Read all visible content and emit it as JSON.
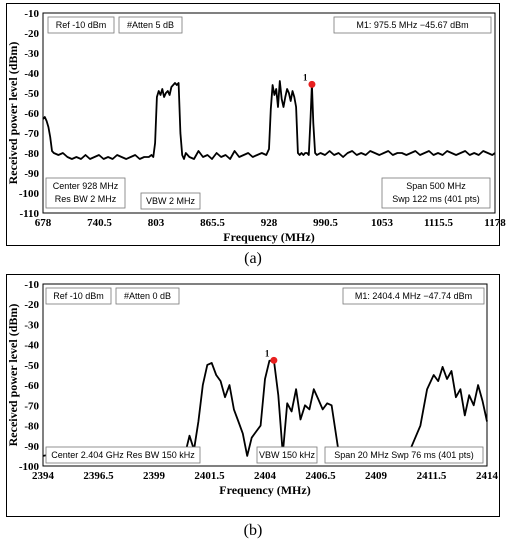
{
  "chart_data": [
    {
      "type": "line",
      "caption": "(a)",
      "xlabel": "Frequency (MHz)",
      "ylabel": "Received power level (dBm)",
      "xlim": [
        678,
        1178
      ],
      "ylim": [
        -110,
        -10
      ],
      "x_ticks": [
        "678",
        "740.5",
        "803",
        "865.5",
        "928",
        "990.5",
        "1053",
        "1115.5",
        "1178"
      ],
      "y_ticks": [
        "-10",
        "-20",
        "-30",
        "-40",
        "-50",
        "-60",
        "-70",
        "-80",
        "-90",
        "-100",
        "-110"
      ],
      "grid": false,
      "annotations": {
        "ref": "Ref -10 dBm",
        "atten": "#Atten 5 dB",
        "marker_readout": "M1: 975.5 MHz −45.67 dBm",
        "center_line1": "Center 928 MHz",
        "center_line2": "Res BW 2 MHz",
        "vbw": "VBW 2 MHz",
        "span_line1": "Span 500 MHz",
        "span_line2": "Swp 122 ms (401 pts)"
      },
      "marker": {
        "label": "1",
        "x": 975.5,
        "y": -45.67
      },
      "trace": {
        "x": [
          678,
          680,
          682,
          684,
          686,
          688,
          690,
          695,
          700,
          705,
          710,
          715,
          720,
          725,
          730,
          735,
          740,
          745,
          750,
          755,
          760,
          765,
          770,
          775,
          780,
          785,
          790,
          795,
          798,
          800,
          802,
          804,
          806,
          808,
          810,
          812,
          814,
          816,
          818,
          820,
          822,
          824,
          826,
          828,
          830,
          832,
          834,
          836,
          840,
          845,
          850,
          855,
          860,
          865,
          870,
          875,
          880,
          885,
          890,
          895,
          900,
          905,
          910,
          915,
          920,
          925,
          928,
          930,
          932,
          934,
          936,
          938,
          940,
          942,
          944,
          946,
          948,
          950,
          952,
          954,
          956,
          958,
          960,
          962,
          964,
          966,
          968,
          970,
          972,
          974,
          975.5,
          977,
          979,
          981,
          985,
          990,
          995,
          1000,
          1005,
          1010,
          1015,
          1020,
          1025,
          1030,
          1035,
          1040,
          1045,
          1050,
          1055,
          1060,
          1065,
          1070,
          1075,
          1080,
          1085,
          1090,
          1095,
          1100,
          1105,
          1110,
          1115,
          1120,
          1125,
          1130,
          1135,
          1140,
          1145,
          1150,
          1155,
          1160,
          1165,
          1170,
          1175,
          1178
        ],
        "y": [
          -63,
          -62,
          -64,
          -67,
          -72,
          -79,
          -80,
          -81,
          -80,
          -82,
          -83,
          -82,
          -83,
          -81,
          -83,
          -82,
          -81,
          -83,
          -82,
          -83,
          -81,
          -82,
          -83,
          -82,
          -81,
          -83,
          -82,
          -82,
          -81,
          -82,
          -75,
          -52,
          -49,
          -51,
          -48,
          -52,
          -50,
          -49,
          -51,
          -47,
          -46,
          -45,
          -46,
          -45,
          -70,
          -81,
          -83,
          -80,
          -82,
          -83,
          -79,
          -82,
          -81,
          -83,
          -80,
          -82,
          -81,
          -83,
          -79,
          -82,
          -81,
          -80,
          -82,
          -81,
          -80,
          -81,
          -78,
          -58,
          -46,
          -51,
          -48,
          -57,
          -44,
          -53,
          -57,
          -52,
          -48,
          -50,
          -54,
          -49,
          -52,
          -57,
          -80,
          -81,
          -80,
          -81,
          -80,
          -80,
          -81,
          -62,
          -45.67,
          -65,
          -80,
          -81,
          -80,
          -81,
          -79,
          -81,
          -80,
          -82,
          -80,
          -79,
          -81,
          -80,
          -81,
          -79,
          -80,
          -81,
          -80,
          -79,
          -81,
          -80,
          -80,
          -81,
          -80,
          -79,
          -81,
          -80,
          -79,
          -81,
          -80,
          -81,
          -79,
          -80,
          -81,
          -80,
          -79,
          -81,
          -80,
          -81,
          -79,
          -80,
          -81,
          -80
        ]
      }
    },
    {
      "type": "line",
      "caption": "(b)",
      "xlabel": "Frequency (MHz)",
      "ylabel": "Received power level (dBm)",
      "xlim": [
        2394,
        2414
      ],
      "ylim": [
        -100,
        -10
      ],
      "x_ticks": [
        "2394",
        "2396.5",
        "2399",
        "2401.5",
        "2404",
        "2406.5",
        "2409",
        "2411.5",
        "2414"
      ],
      "y_ticks": [
        "-10",
        "-20",
        "-30",
        "-40",
        "-50",
        "-60",
        "-70",
        "-80",
        "-90",
        "-100"
      ],
      "grid": false,
      "annotations": {
        "ref": "Ref -10 dBm",
        "atten": "#Atten 0 dB",
        "marker_readout": "M1: 2404.4 MHz −47.74 dBm",
        "center_line1": "Center 2.404 GHz Res BW 150 kHz",
        "vbw": "VBW 150 kHz",
        "span_line1": "Span 20 MHz Swp 76 ms (401 pts)"
      },
      "marker": {
        "label": "1",
        "x": 2404.4,
        "y": -47.74
      },
      "trace": {
        "x": [
          2394,
          2394.5,
          2395,
          2395.5,
          2396,
          2396.5,
          2397,
          2397.5,
          2398,
          2398.5,
          2399,
          2399.5,
          2400,
          2400.4,
          2400.6,
          2400.8,
          2401,
          2401.2,
          2401.4,
          2401.6,
          2401.8,
          2402,
          2402.2,
          2402.4,
          2402.6,
          2402.8,
          2403,
          2403.2,
          2403.4,
          2403.6,
          2403.8,
          2404,
          2404.2,
          2404.4,
          2404.6,
          2404.8,
          2405,
          2405.2,
          2405.4,
          2405.6,
          2405.8,
          2406,
          2406.2,
          2406.4,
          2406.6,
          2406.8,
          2407,
          2407.3,
          2407.6,
          2408,
          2408.5,
          2409,
          2409.5,
          2410,
          2410.5,
          2411,
          2411.3,
          2411.6,
          2411.8,
          2412,
          2412.2,
          2412.4,
          2412.6,
          2412.8,
          2413,
          2413.2,
          2413.4,
          2413.6,
          2413.8,
          2414
        ],
        "y": [
          -95,
          -94,
          -95,
          -94,
          -93,
          -95,
          -94,
          -95,
          -93,
          -94,
          -95,
          -94,
          -93,
          -94,
          -85,
          -92,
          -78,
          -60,
          -50,
          -49,
          -55,
          -58,
          -66,
          -60,
          -72,
          -78,
          -84,
          -95,
          -86,
          -83,
          -80,
          -57,
          -48,
          -47.74,
          -65,
          -94,
          -69,
          -73,
          -62,
          -77,
          -70,
          -72,
          -62,
          -67,
          -72,
          -69,
          -70,
          -92,
          -94,
          -93,
          -94,
          -93,
          -94,
          -94,
          -93,
          -80,
          -62,
          -55,
          -58,
          -51,
          -57,
          -53,
          -66,
          -62,
          -75,
          -65,
          -70,
          -60,
          -68,
          -78
        ]
      }
    }
  ]
}
